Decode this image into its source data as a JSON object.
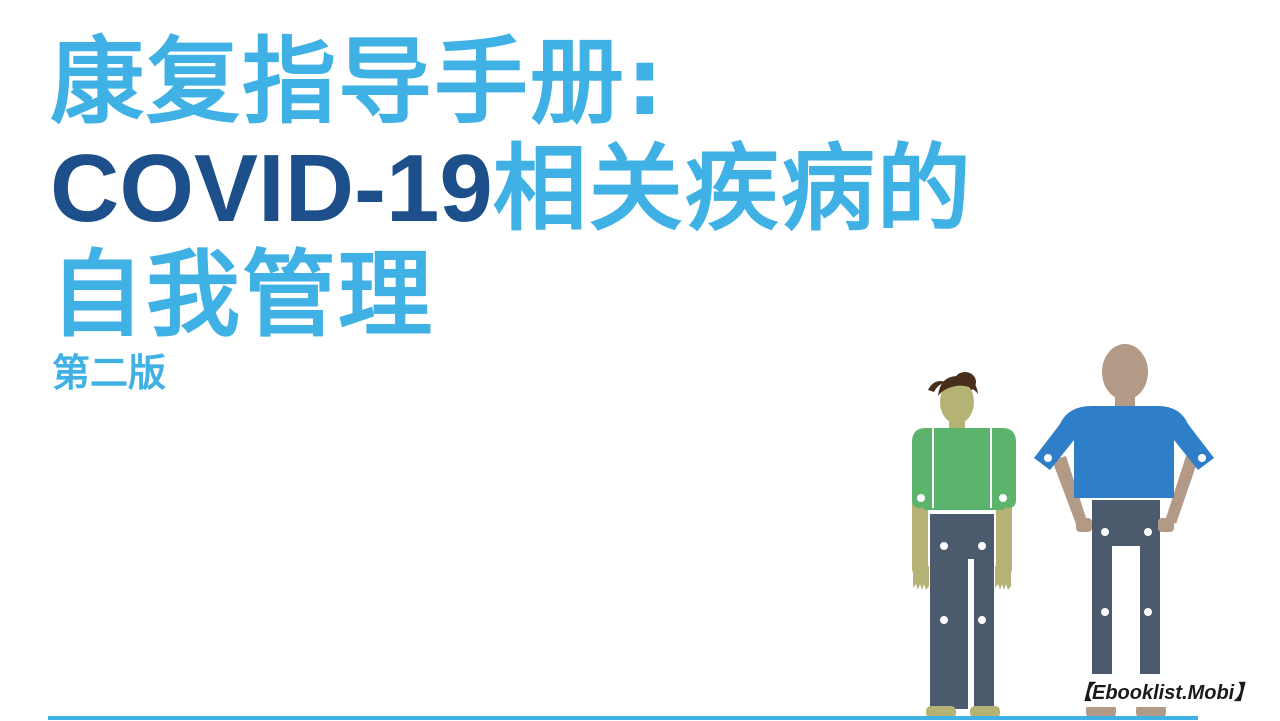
{
  "colors": {
    "accent": "#3fb1e5",
    "navy": "#1d4f8a",
    "woman_shirt": "#5cb46c",
    "woman_skin": "#b5b276",
    "man_shirt": "#2e7fc8",
    "man_skin": "#b29a86",
    "pants": "#4b5a6c",
    "hair": "#4a2e1c"
  },
  "title": {
    "line1": "康复指导手册:",
    "line2_en": "COVID-19",
    "line2_zh": "相关疾病的",
    "line3": "自我管理"
  },
  "edition": "第二版",
  "watermark": "【Ebooklist.Mobi】",
  "illustration": {
    "figures": [
      "woman-figure",
      "man-figure"
    ]
  }
}
